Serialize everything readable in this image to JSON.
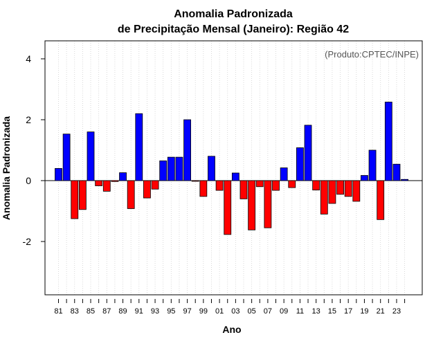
{
  "chart_data": {
    "type": "bar",
    "title_line1": "Anomalia Padronizada",
    "title_line2": "de Precipitação Mensal (Janeiro): Região 42",
    "xlabel": "Ano",
    "ylabel": "Anomalia Padronizada",
    "credit": "(Produto:CPTEC/INPE)",
    "ylim": [
      -3.8,
      4.6
    ],
    "yticks": [
      -2,
      0,
      2,
      4
    ],
    "grid": "vertical dotted",
    "positive_color": "#0000ff",
    "negative_color": "#ff0000",
    "categories": [
      "1981",
      "1982",
      "1983",
      "1984",
      "1985",
      "1986",
      "1987",
      "1988",
      "1989",
      "1990",
      "1991",
      "1992",
      "1993",
      "1994",
      "1995",
      "1996",
      "1997",
      "1998",
      "1999",
      "2000",
      "2001",
      "2002",
      "2003",
      "2004",
      "2005",
      "2006",
      "2007",
      "2008",
      "2009",
      "2010",
      "2011",
      "2012",
      "2013",
      "2014",
      "2015",
      "2016",
      "2017",
      "2018",
      "2019",
      "2020",
      "2021",
      "2022",
      "2023",
      "2024"
    ],
    "values": [
      0.4,
      1.53,
      -1.25,
      -0.95,
      1.6,
      -0.17,
      -0.35,
      -0.03,
      0.26,
      -0.92,
      2.2,
      -0.57,
      -0.28,
      0.65,
      0.77,
      0.77,
      2.0,
      -0.02,
      -0.52,
      0.8,
      -0.32,
      -1.77,
      0.25,
      -0.6,
      -1.62,
      -0.2,
      -1.55,
      -0.32,
      0.42,
      -0.23,
      1.08,
      1.82,
      -0.31,
      -1.1,
      -0.75,
      -0.45,
      -0.52,
      -0.68,
      0.17,
      1.0,
      -1.28,
      2.58,
      0.54,
      0.04
    ],
    "xtick_labels": [
      "81",
      "83",
      "85",
      "87",
      "89",
      "91",
      "93",
      "95",
      "97",
      "99",
      "01",
      "03",
      "05",
      "07",
      "09",
      "11",
      "13",
      "15",
      "17",
      "19",
      "21",
      "23"
    ]
  }
}
